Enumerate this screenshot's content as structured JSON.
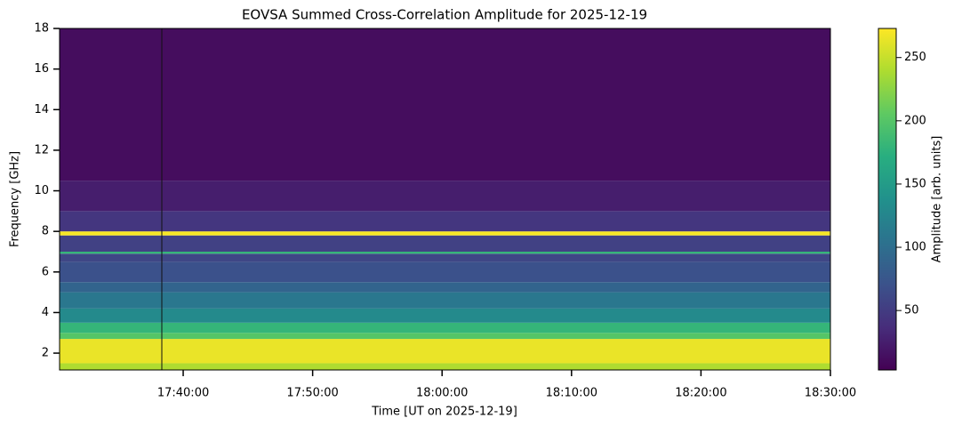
{
  "chart_data": {
    "type": "heatmap",
    "title": "EOVSA Summed Cross-Correlation Amplitude for 2025-12-19",
    "x_label": "Time [UT on 2025-12-19]",
    "y_label": "Frequency [GHz]",
    "colorbar_label": "Amplitude [arb. units]",
    "colormap": "viridis",
    "xlim": [
      "17:30:27",
      "18:30:00"
    ],
    "xticks": [
      "17:40:00",
      "17:50:00",
      "18:00:00",
      "18:10:00",
      "18:20:00",
      "18:30:00"
    ],
    "ylim": [
      1.17,
      18
    ],
    "yticks": [
      2,
      4,
      6,
      8,
      10,
      12,
      14,
      16,
      18
    ],
    "clim": [
      3,
      273
    ],
    "cticks": [
      50,
      100,
      150,
      200,
      250
    ],
    "y_edges": [
      1.17,
      1.5,
      2.7,
      3.0,
      3.5,
      4.2,
      5.0,
      5.5,
      6.5,
      6.9,
      7.0,
      7.8,
      8.0,
      9.0,
      10.5,
      18
    ],
    "values": [
      240,
      265,
      200,
      180,
      130,
      110,
      90,
      70,
      60,
      180,
      55,
      270,
      45,
      25,
      12
    ]
  }
}
